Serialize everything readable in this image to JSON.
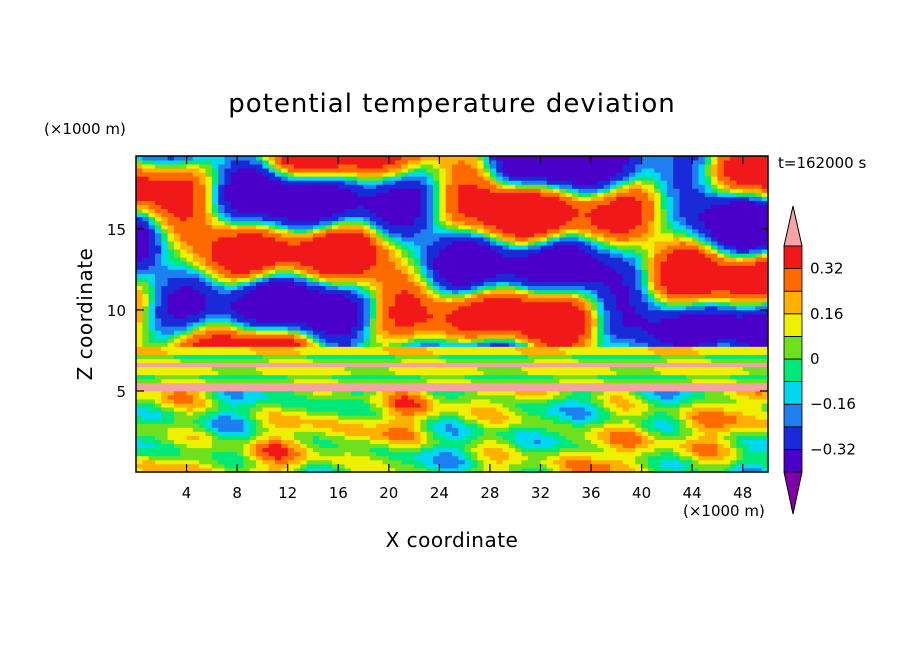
{
  "chart_data": {
    "type": "heatmap",
    "title": "potential temperature deviation",
    "xlabel": "X coordinate",
    "ylabel": "Z coordinate",
    "x_unit": "(×1000 m)",
    "y_unit": "(×1000 m)",
    "time_label": "t=162000 s",
    "xlim": [
      0,
      50
    ],
    "ylim": [
      0,
      19.5
    ],
    "x_ticks": [
      4,
      8,
      12,
      16,
      20,
      24,
      28,
      32,
      36,
      40,
      44,
      48
    ],
    "y_ticks": [
      5,
      10,
      15
    ],
    "colorbar": {
      "levels": [
        -0.4,
        -0.32,
        -0.24,
        -0.16,
        -0.08,
        0,
        0.08,
        0.16,
        0.24,
        0.32,
        0.4
      ],
      "colors": [
        "#7f00a8",
        "#4a00c8",
        "#1a2ad8",
        "#1e7ff0",
        "#00d8f0",
        "#00e87a",
        "#6fe01e",
        "#eef000",
        "#ffb000",
        "#ff6a00",
        "#f01818",
        "#f4a4a4"
      ],
      "tick_values": [
        -0.32,
        -0.16,
        0,
        0.16,
        0.32
      ],
      "tick_labels": [
        "−0.32",
        "−0.16",
        "0",
        "0.16",
        "0.32"
      ],
      "extend": "both"
    }
  }
}
